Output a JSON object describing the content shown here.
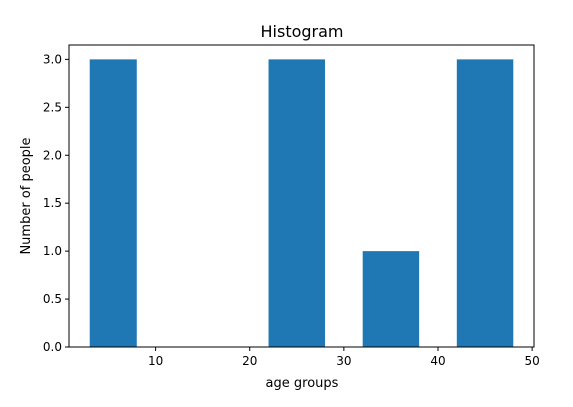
{
  "chart_data": {
    "type": "bar",
    "title": "Histogram",
    "xlabel": "age groups",
    "ylabel": "Number of people",
    "bins": [
      {
        "start": 3,
        "end": 8,
        "count": 3
      },
      {
        "start": 22,
        "end": 28,
        "count": 3
      },
      {
        "start": 32,
        "end": 38,
        "count": 1
      },
      {
        "start": 42,
        "end": 48,
        "count": 3
      }
    ],
    "xlim": [
      0.8,
      50.2
    ],
    "ylim": [
      0,
      3.15
    ],
    "xticks": [
      10,
      20,
      30,
      40,
      50
    ],
    "yticks": [
      0.0,
      0.5,
      1.0,
      1.5,
      2.0,
      2.5,
      3.0
    ],
    "xtick_labels": [
      "10",
      "20",
      "30",
      "40",
      "50"
    ],
    "ytick_labels": [
      "0.0",
      "0.5",
      "1.0",
      "1.5",
      "2.0",
      "2.5",
      "3.0"
    ],
    "bar_color": "#1f77b4",
    "grid": false,
    "legend": "none"
  }
}
